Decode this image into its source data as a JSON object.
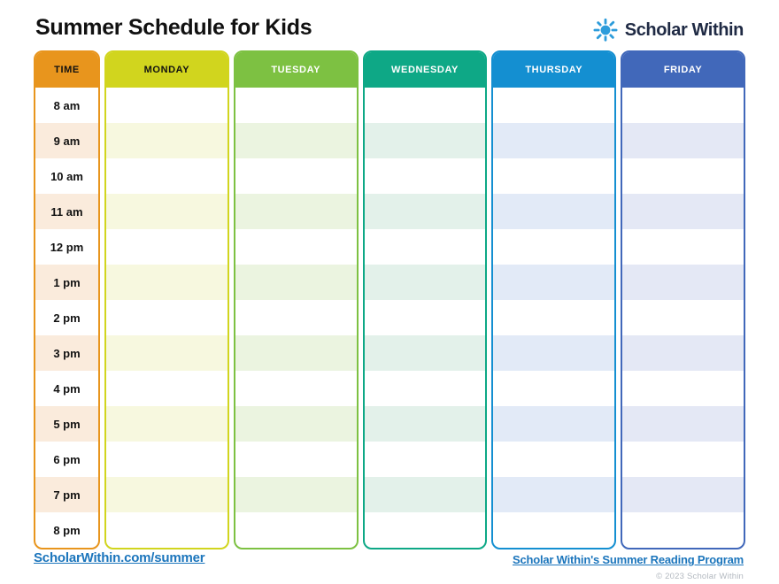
{
  "header": {
    "title": "Summer Schedule for Kids",
    "brand": {
      "name": "Scholar Within",
      "icon": "sun-icon",
      "icon_color": "#2d9cdb",
      "text_color": "#1f2a44"
    }
  },
  "schedule": {
    "times": [
      "8 am",
      "9 am",
      "10 am",
      "11 am",
      "12 pm",
      "1 pm",
      "2 pm",
      "3 pm",
      "4 pm",
      "5 pm",
      "6 pm",
      "7 pm",
      "8 pm"
    ],
    "striped_rows": [
      1,
      3,
      5,
      7,
      9,
      11
    ],
    "columns": [
      {
        "id": "time",
        "label": "TIME",
        "color": "#e8951d",
        "stripe": "#faebdc",
        "label_color": "#111111"
      },
      {
        "id": "monday",
        "label": "MONDAY",
        "color": "#d1d51e",
        "stripe": "#f7f8df",
        "label_color": "#111111"
      },
      {
        "id": "tuesday",
        "label": "TUESDAY",
        "color": "#7dc142",
        "stripe": "#ebf4e0",
        "label_color": "#ffffff"
      },
      {
        "id": "wednesday",
        "label": "WEDNESDAY",
        "color": "#0ea886",
        "stripe": "#e3f1ea",
        "label_color": "#ffffff"
      },
      {
        "id": "thursday",
        "label": "THURSDAY",
        "color": "#148fd1",
        "stripe": "#e2eaf7",
        "label_color": "#ffffff"
      },
      {
        "id": "friday",
        "label": "FRIDAY",
        "color": "#4168ba",
        "stripe": "#e4e8f5",
        "label_color": "#ffffff"
      }
    ]
  },
  "footer": {
    "left_link": {
      "label": "ScholarWithin.com/summer",
      "color": "#1b75bc"
    },
    "right_link": {
      "label": "Scholar Within's Summer Reading Program",
      "color": "#1b75bc"
    },
    "copyright": "© 2023 Scholar Within"
  }
}
